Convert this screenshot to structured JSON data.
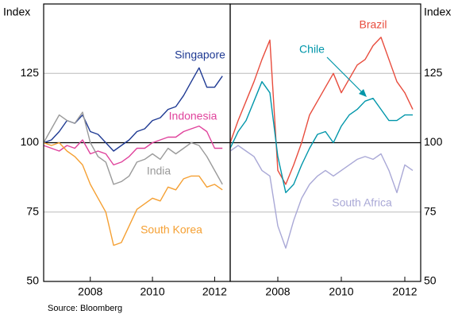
{
  "source": "Source: Bloomberg",
  "chart_data": [
    {
      "type": "line",
      "y_label": "Index",
      "xlim": [
        2006.5,
        2012.5
      ],
      "xticks": [
        2008,
        2010,
        2012
      ],
      "ylim": [
        50,
        150
      ],
      "yticks": [
        50,
        75,
        100,
        125
      ],
      "x": [
        2006.5,
        2006.75,
        2007,
        2007.25,
        2007.5,
        2007.75,
        2008,
        2008.25,
        2008.5,
        2008.75,
        2009,
        2009.25,
        2009.5,
        2009.75,
        2010,
        2010.25,
        2010.5,
        2010.75,
        2011,
        2011.25,
        2011.5,
        2011.75,
        2012,
        2012.25
      ],
      "series": [
        {
          "name": "Singapore",
          "color": "#1f3a93",
          "values": [
            100,
            101,
            104,
            108,
            107,
            110,
            104,
            103,
            100,
            97,
            99,
            101,
            104,
            105,
            108,
            109,
            112,
            113,
            117,
            122,
            127,
            120,
            120,
            124
          ]
        },
        {
          "name": "Indonesia",
          "color": "#e0439c",
          "values": [
            99,
            98,
            97,
            99,
            98,
            101,
            96,
            97,
            96,
            92,
            93,
            95,
            98,
            98,
            100,
            101,
            102,
            102,
            104,
            105,
            106,
            104,
            98,
            98
          ]
        },
        {
          "name": "India",
          "color": "#9a9a9a",
          "values": [
            100,
            105,
            110,
            108,
            107,
            111,
            100,
            95,
            93,
            85,
            86,
            88,
            93,
            94,
            96,
            94,
            98,
            96,
            98,
            100,
            99,
            95,
            90,
            85
          ]
        },
        {
          "name": "South Korea",
          "color": "#f5a033",
          "values": [
            100,
            99,
            100,
            97,
            95,
            92,
            85,
            80,
            75,
            63,
            64,
            70,
            76,
            78,
            80,
            79,
            84,
            83,
            87,
            88,
            88,
            84,
            85,
            83
          ]
        }
      ]
    },
    {
      "type": "line",
      "y_label": "Index",
      "xlim": [
        2006.5,
        2012.5
      ],
      "xticks": [
        2008,
        2010,
        2012
      ],
      "ylim": [
        50,
        150
      ],
      "yticks": [
        50,
        75,
        100,
        125
      ],
      "x": [
        2006.5,
        2006.75,
        2007,
        2007.25,
        2007.5,
        2007.75,
        2008,
        2008.25,
        2008.5,
        2008.75,
        2009,
        2009.25,
        2009.5,
        2009.75,
        2010,
        2010.25,
        2010.5,
        2010.75,
        2011,
        2011.25,
        2011.5,
        2011.75,
        2012,
        2012.25
      ],
      "series": [
        {
          "name": "Brazil",
          "color": "#e84c3d",
          "values": [
            100,
            108,
            115,
            122,
            130,
            137,
            90,
            85,
            92,
            100,
            110,
            115,
            120,
            125,
            118,
            123,
            128,
            130,
            135,
            138,
            130,
            122,
            118,
            112
          ]
        },
        {
          "name": "Chile",
          "color": "#0096aa",
          "values": [
            98,
            104,
            108,
            115,
            122,
            118,
            95,
            82,
            85,
            92,
            98,
            103,
            104,
            100,
            106,
            110,
            112,
            115,
            116,
            112,
            108,
            108,
            110,
            110
          ]
        },
        {
          "name": "South Africa",
          "color": "#a9a8d6",
          "values": [
            97,
            99,
            97,
            95,
            90,
            88,
            70,
            62,
            72,
            80,
            85,
            88,
            90,
            88,
            90,
            92,
            94,
            95,
            94,
            96,
            90,
            82,
            92,
            90
          ]
        }
      ]
    }
  ]
}
